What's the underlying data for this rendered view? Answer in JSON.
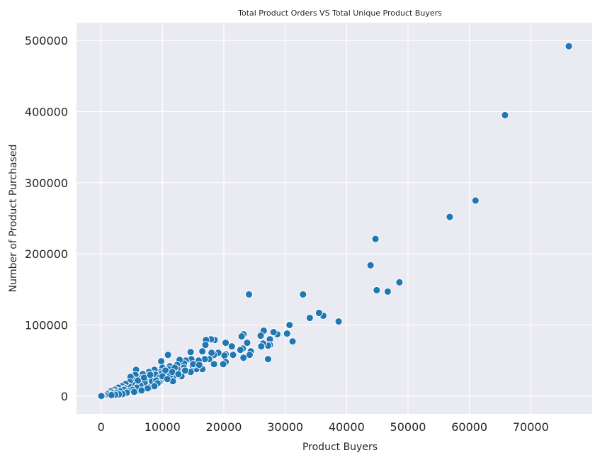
{
  "chart_data": {
    "type": "scatter",
    "title": "Total Product Orders VS Total Unique Product Buyers",
    "xlabel": "Product Buyers",
    "ylabel": "Number of Product Purchased",
    "xlim": [
      -4000,
      80000
    ],
    "ylim": [
      -25000,
      525000
    ],
    "xticks": [
      0,
      10000,
      20000,
      30000,
      40000,
      50000,
      60000,
      70000
    ],
    "yticks": [
      0,
      100000,
      200000,
      300000,
      400000,
      500000
    ],
    "xtick_labels": [
      "0",
      "10000",
      "20000",
      "30000",
      "40000",
      "50000",
      "60000",
      "70000"
    ],
    "ytick_labels": [
      "0",
      "100000",
      "200000",
      "300000",
      "400000",
      "500000"
    ],
    "grid": true,
    "colors": {
      "background": "#eaeaf2",
      "grid": "#ffffff",
      "point": "#1f77b4"
    },
    "series": [
      {
        "points": [
          [
            76200,
            492000
          ],
          [
            65800,
            395000
          ],
          [
            61000,
            275000
          ],
          [
            56800,
            252000
          ],
          [
            44700,
            221000
          ],
          [
            43900,
            184000
          ],
          [
            48600,
            160000
          ],
          [
            44900,
            149000
          ],
          [
            46700,
            147000
          ],
          [
            38700,
            105000
          ],
          [
            36200,
            113000
          ],
          [
            35500,
            117000
          ],
          [
            34000,
            110000
          ],
          [
            32900,
            143000
          ],
          [
            24100,
            143000
          ],
          [
            30700,
            100000
          ],
          [
            31200,
            77000
          ],
          [
            30300,
            88000
          ],
          [
            28700,
            87000
          ],
          [
            28100,
            90000
          ],
          [
            27500,
            80000
          ],
          [
            27500,
            72000
          ],
          [
            27200,
            71000
          ],
          [
            26500,
            92000
          ],
          [
            26000,
            85000
          ],
          [
            26400,
            74000
          ],
          [
            26100,
            70000
          ],
          [
            27200,
            52000
          ],
          [
            24400,
            63000
          ],
          [
            24200,
            58000
          ],
          [
            23800,
            75000
          ],
          [
            23200,
            87000
          ],
          [
            22900,
            84000
          ],
          [
            23100,
            67000
          ],
          [
            22700,
            65000
          ],
          [
            23200,
            54000
          ],
          [
            21500,
            58000
          ],
          [
            21300,
            70000
          ],
          [
            20300,
            75000
          ],
          [
            20300,
            59000
          ],
          [
            20100,
            57000
          ],
          [
            20300,
            48000
          ],
          [
            19900,
            45000
          ],
          [
            19100,
            61000
          ],
          [
            18500,
            79000
          ],
          [
            17900,
            80000
          ],
          [
            17100,
            79000
          ],
          [
            17000,
            72000
          ],
          [
            18400,
            58000
          ],
          [
            18400,
            45000
          ],
          [
            18000,
            61000
          ],
          [
            17600,
            52000
          ],
          [
            16500,
            63000
          ],
          [
            16500,
            38000
          ],
          [
            16900,
            52000
          ],
          [
            15900,
            50000
          ],
          [
            15500,
            38000
          ],
          [
            14900,
            43000
          ],
          [
            14600,
            62000
          ],
          [
            14700,
            52000
          ],
          [
            14600,
            34000
          ],
          [
            13800,
            50000
          ],
          [
            13500,
            46000
          ],
          [
            13500,
            40000
          ],
          [
            13300,
            35000
          ],
          [
            13100,
            28000
          ],
          [
            12800,
            51000
          ],
          [
            12400,
            44000
          ],
          [
            12400,
            38000
          ],
          [
            12100,
            33000
          ],
          [
            11800,
            27000
          ],
          [
            11700,
            21000
          ],
          [
            10900,
            58000
          ],
          [
            11200,
            42000
          ],
          [
            11000,
            38000
          ],
          [
            10600,
            31000
          ],
          [
            10400,
            25000
          ],
          [
            9800,
            49000
          ],
          [
            10000,
            40000
          ],
          [
            9700,
            34000
          ],
          [
            9300,
            28000
          ],
          [
            9500,
            20000
          ],
          [
            9000,
            16000
          ],
          [
            8700,
            37000
          ],
          [
            8600,
            31000
          ],
          [
            8400,
            24000
          ],
          [
            8100,
            18000
          ],
          [
            8000,
            13000
          ],
          [
            7800,
            34000
          ],
          [
            7500,
            29000
          ],
          [
            7300,
            22000
          ],
          [
            7100,
            15000
          ],
          [
            6900,
            10000
          ],
          [
            6800,
            31000
          ],
          [
            6500,
            25000
          ],
          [
            6300,
            18000
          ],
          [
            6100,
            12000
          ],
          [
            5900,
            8000
          ],
          [
            5700,
            37000
          ],
          [
            5600,
            30000
          ],
          [
            5500,
            22000
          ],
          [
            5200,
            16000
          ],
          [
            5000,
            11000
          ],
          [
            4800,
            27000
          ],
          [
            4700,
            20000
          ],
          [
            4500,
            14000
          ],
          [
            4300,
            9000
          ],
          [
            4000,
            17000
          ],
          [
            3800,
            12000
          ],
          [
            3600,
            6000
          ],
          [
            3400,
            14000
          ],
          [
            3200,
            10000
          ],
          [
            3000,
            5000
          ],
          [
            2800,
            12000
          ],
          [
            2600,
            8000
          ],
          [
            2400,
            4000
          ],
          [
            2200,
            9000
          ],
          [
            2000,
            6000
          ],
          [
            1800,
            3000
          ],
          [
            1600,
            7000
          ],
          [
            1400,
            4000
          ],
          [
            1200,
            2000
          ],
          [
            900,
            3000
          ],
          [
            600,
            1500
          ],
          [
            300,
            800
          ],
          [
            100,
            400
          ],
          [
            50,
            200
          ],
          [
            4000,
            11000
          ],
          [
            4900,
            13000
          ],
          [
            5600,
            16000
          ],
          [
            6200,
            19000
          ],
          [
            6700,
            20000
          ],
          [
            7400,
            24000
          ],
          [
            8200,
            26000
          ],
          [
            8900,
            30000
          ],
          [
            9900,
            32000
          ],
          [
            10500,
            36000
          ],
          [
            11300,
            30000
          ],
          [
            12000,
            40000
          ],
          [
            11600,
            34000
          ],
          [
            9500,
            26000
          ],
          [
            8300,
            21000
          ],
          [
            7100,
            19000
          ],
          [
            6400,
            15000
          ],
          [
            5800,
            12000
          ],
          [
            5100,
            9000
          ],
          [
            4400,
            7000
          ],
          [
            3700,
            9000
          ],
          [
            3100,
            7000
          ],
          [
            2500,
            5000
          ],
          [
            1900,
            4000
          ],
          [
            6000,
            22000
          ],
          [
            7000,
            26000
          ],
          [
            8000,
            30000
          ],
          [
            9000,
            22000
          ],
          [
            10000,
            28000
          ],
          [
            12600,
            31000
          ],
          [
            13700,
            36000
          ],
          [
            15000,
            45000
          ],
          [
            16000,
            44000
          ],
          [
            10800,
            24000
          ],
          [
            9200,
            18000
          ],
          [
            8700,
            14000
          ],
          [
            7600,
            11000
          ],
          [
            6600,
            8000
          ],
          [
            5400,
            6000
          ],
          [
            4200,
            5000
          ],
          [
            3500,
            3000
          ],
          [
            2900,
            2500
          ],
          [
            2300,
            2000
          ],
          [
            1700,
            1500
          ]
        ]
      }
    ]
  }
}
